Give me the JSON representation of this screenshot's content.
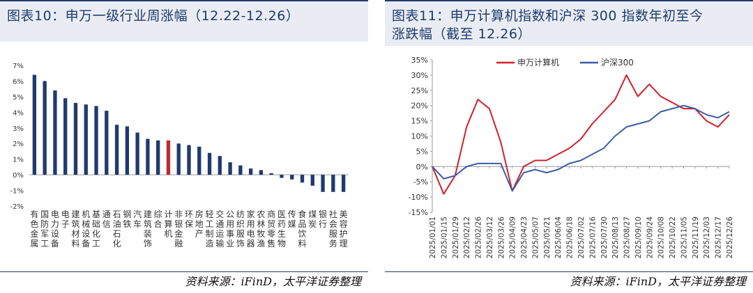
{
  "left_panel": {
    "title": "图表10：申万一级行业周涨幅（12.22-12.26）",
    "source": "资料来源：iFinD，太平洋证券整理"
  },
  "right_panel": {
    "title_line1": "图表11：申万计算机指数和沪深 300 指数年初至今",
    "title_line2": "涨跌幅（截至 12.26）",
    "source": "资料来源：iFinD，太平洋证券整理"
  },
  "colors": {
    "navy": "#1f3a6e",
    "bar_blue": "#1f3a6e",
    "bar_highlight": "#c0272d",
    "line_red": "#d0202a",
    "line_blue": "#3a5ba8"
  },
  "chart_data": [
    {
      "type": "bar",
      "categories": [
        "有色金属",
        "国防军工",
        "电力设备",
        "电子",
        "建筑材料",
        "机械设备",
        "基础化工",
        "通信",
        "石油石化",
        "钢铁",
        "汽车",
        "建筑装饰",
        "综合",
        "计算机",
        "非银金融",
        "环保",
        "房地产",
        "轻工制造",
        "交通运输",
        "公用事业",
        "纺织服饰",
        "家用电器",
        "农林牧渔",
        "商贸零售",
        "医药生物",
        "传媒",
        "食品饮料",
        "煤炭",
        "银行",
        "社会服务",
        "美容护理"
      ],
      "values": [
        6.4,
        6.0,
        5.4,
        4.9,
        4.6,
        4.5,
        4.4,
        4.1,
        3.2,
        3.1,
        2.7,
        2.3,
        2.2,
        2.2,
        2.0,
        1.9,
        1.8,
        1.4,
        1.2,
        0.8,
        0.6,
        0.4,
        0.3,
        0.1,
        -0.2,
        -0.3,
        -0.5,
        -0.7,
        -1.1,
        -1.1,
        -1.1
      ],
      "highlight": "计算机",
      "ylim": [
        -2,
        7
      ],
      "yticks": [
        "-2%",
        "-1%",
        "0%",
        "1%",
        "2%",
        "3%",
        "4%",
        "5%",
        "6%",
        "7%"
      ],
      "ytick_values": [
        -2,
        -1,
        0,
        1,
        2,
        3,
        4,
        5,
        6,
        7
      ]
    },
    {
      "type": "line",
      "legend": [
        "申万计算机",
        "沪深300"
      ],
      "ylim": [
        -15,
        35
      ],
      "yticks": [
        "-15%",
        "-10%",
        "-5%",
        "0%",
        "5%",
        "10%",
        "15%",
        "20%",
        "25%",
        "30%",
        "35%"
      ],
      "ytick_values": [
        -15,
        -10,
        -5,
        0,
        5,
        10,
        15,
        20,
        25,
        30,
        35
      ],
      "x": [
        "2025/01/01",
        "2025/01/15",
        "2025/01/29",
        "2025/02/12",
        "2025/02/26",
        "2025/03/12",
        "2025/03/26",
        "2025/04/09",
        "2025/04/23",
        "2025/05/07",
        "2025/05/21",
        "2025/06/04",
        "2025/06/18",
        "2025/07/02",
        "2025/07/16",
        "2025/07/30",
        "2025/08/13",
        "2025/08/27",
        "2025/09/10",
        "2025/09/24",
        "2025/10/08",
        "2025/10/22",
        "2025/11/05",
        "2025/11/19",
        "2025/12/03",
        "2025/12/17",
        "2025/12/26"
      ],
      "series": [
        {
          "name": "申万计算机",
          "values": [
            0,
            -9,
            -3,
            13,
            22,
            19,
            8,
            -8,
            0,
            2,
            2,
            4,
            6,
            9,
            14,
            18,
            22,
            30,
            23,
            27,
            23,
            21,
            19,
            19,
            15,
            13,
            17
          ]
        },
        {
          "name": "沪深300",
          "values": [
            0,
            -4,
            -3,
            0,
            1,
            1,
            1,
            -8,
            -2,
            -1,
            -2,
            -1,
            1,
            2,
            4,
            6,
            10,
            13,
            14,
            15,
            18,
            19,
            20,
            19,
            17,
            16,
            18
          ]
        }
      ]
    }
  ]
}
